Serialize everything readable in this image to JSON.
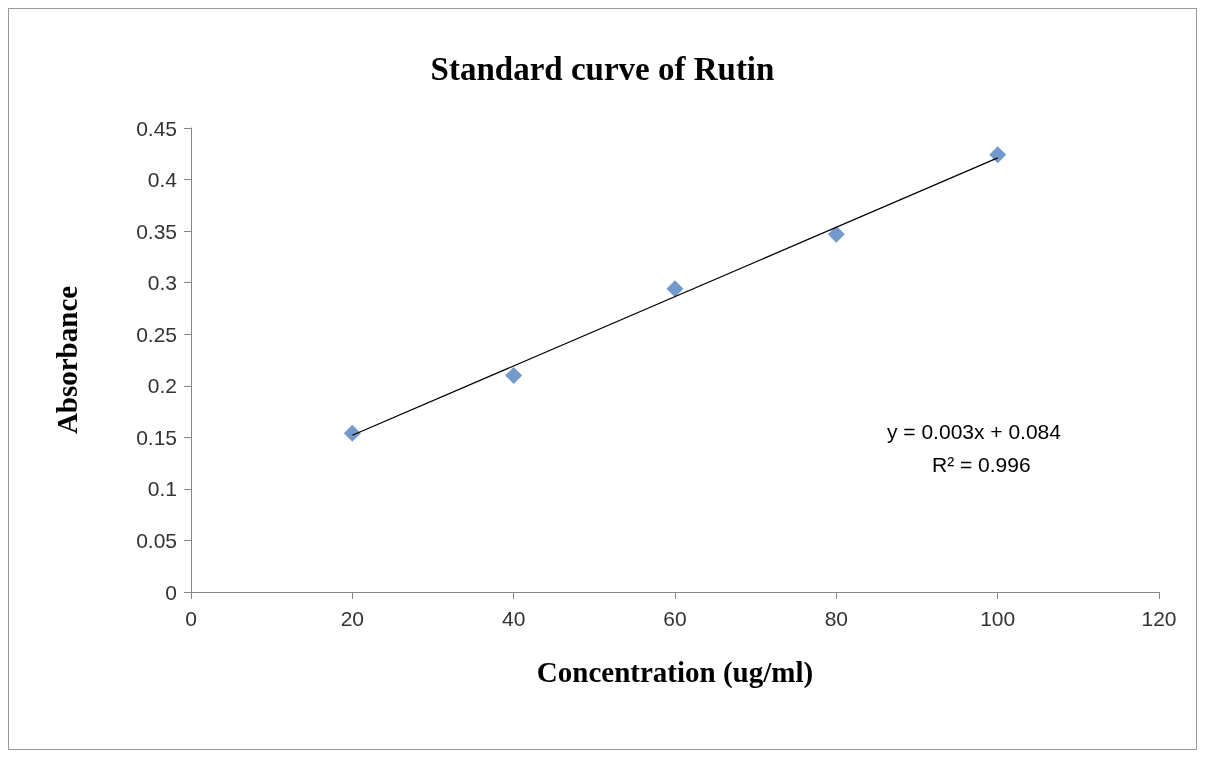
{
  "chart_data": {
    "type": "scatter",
    "title": "Standard curve of Rutin",
    "xlabel": "Concentration (ug/ml)",
    "ylabel": "Absorbance",
    "x": [
      20,
      40,
      60,
      80,
      100
    ],
    "series": [
      {
        "color": "#4f81bd",
        "values": [
          0.154,
          0.21,
          0.294,
          0.347,
          0.424
        ],
        "marker": "diamond"
      },
      {
        "type": "line",
        "color": "#000000",
        "x": [
          20,
          100
        ],
        "values": [
          0.152,
          0.421
        ],
        "marker": "none",
        "line_style": "solid"
      }
    ],
    "xlim": [
      0,
      120
    ],
    "xticks": [
      0,
      20,
      40,
      60,
      80,
      100,
      120
    ],
    "ylim": [
      0,
      0.45
    ],
    "yticks": [
      0,
      0.05,
      0.1,
      0.15,
      0.2,
      0.25,
      0.3,
      0.35,
      0.4,
      0.45
    ],
    "annotations": [
      "y = 0.003x + 0.084",
      "R² = 0.996"
    ],
    "grid": false
  }
}
